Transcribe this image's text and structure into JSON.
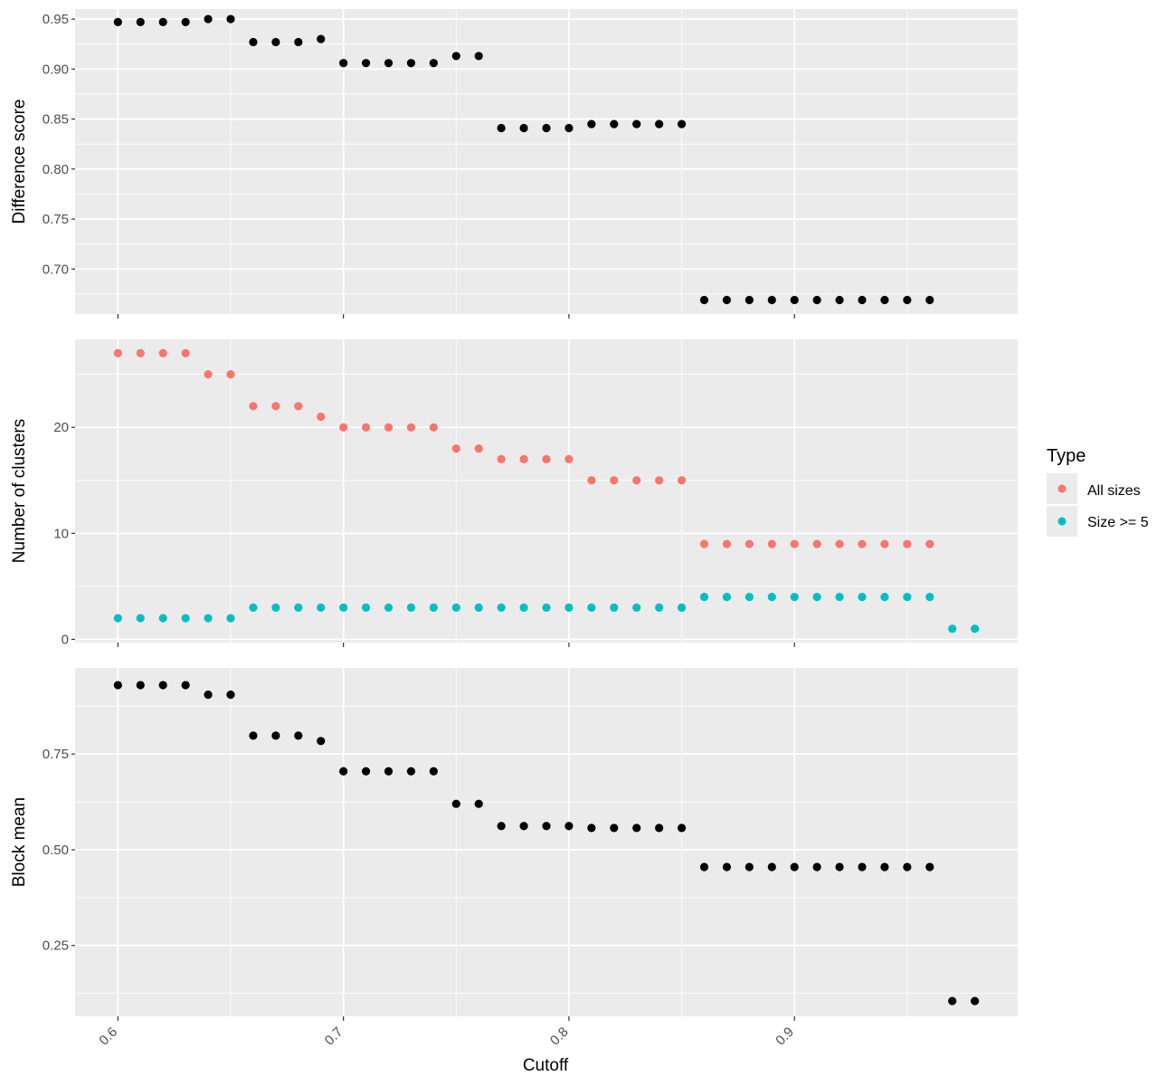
{
  "chart_data": [
    {
      "type": "scatter",
      "panel": "top",
      "xlabel": "",
      "ylabel": "Difference score",
      "xlim": [
        0.581,
        0.999
      ],
      "ylim": [
        0.655,
        0.96
      ],
      "grid": true,
      "y_ticks": [
        "0.70",
        "0.75",
        "0.80",
        "0.85",
        "0.90",
        "0.95"
      ],
      "x_ticks": [],
      "series": [
        {
          "color": "#000000",
          "x": [
            0.6,
            0.61,
            0.62,
            0.63,
            0.64,
            0.65,
            0.66,
            0.67,
            0.68,
            0.69,
            0.7,
            0.71,
            0.72,
            0.73,
            0.74,
            0.75,
            0.76,
            0.77,
            0.78,
            0.79,
            0.8,
            0.81,
            0.82,
            0.83,
            0.84,
            0.85,
            0.86,
            0.87,
            0.88,
            0.89,
            0.9,
            0.91,
            0.92,
            0.93,
            0.94,
            0.95,
            0.96
          ],
          "y": [
            0.947,
            0.947,
            0.947,
            0.947,
            0.95,
            0.95,
            0.927,
            0.927,
            0.927,
            0.93,
            0.906,
            0.906,
            0.906,
            0.906,
            0.906,
            0.913,
            0.913,
            0.841,
            0.841,
            0.841,
            0.841,
            0.845,
            0.845,
            0.845,
            0.845,
            0.845,
            0.669,
            0.669,
            0.669,
            0.669,
            0.669,
            0.669,
            0.669,
            0.669,
            0.669,
            0.669,
            0.669
          ]
        }
      ]
    },
    {
      "type": "scatter",
      "panel": "middle",
      "xlabel": "",
      "ylabel": "Number of clusters",
      "xlim": [
        0.581,
        0.999
      ],
      "ylim": [
        -0.3,
        28.3
      ],
      "grid": true,
      "y_ticks": [
        "0",
        "10",
        "20"
      ],
      "x_ticks": [],
      "series": [
        {
          "name": "All sizes",
          "color": "#F8766D",
          "x": [
            0.6,
            0.61,
            0.62,
            0.63,
            0.64,
            0.65,
            0.66,
            0.67,
            0.68,
            0.69,
            0.7,
            0.71,
            0.72,
            0.73,
            0.74,
            0.75,
            0.76,
            0.77,
            0.78,
            0.79,
            0.8,
            0.81,
            0.82,
            0.83,
            0.84,
            0.85,
            0.86,
            0.87,
            0.88,
            0.89,
            0.9,
            0.91,
            0.92,
            0.93,
            0.94,
            0.95,
            0.96
          ],
          "y": [
            27,
            27,
            27,
            27,
            25,
            25,
            22,
            22,
            22,
            21,
            20,
            20,
            20,
            20,
            20,
            18,
            18,
            17,
            17,
            17,
            17,
            15,
            15,
            15,
            15,
            15,
            9,
            9,
            9,
            9,
            9,
            9,
            9,
            9,
            9,
            9,
            9
          ]
        },
        {
          "name": "Size >= 5",
          "color": "#00BFC4",
          "x": [
            0.6,
            0.61,
            0.62,
            0.63,
            0.64,
            0.65,
            0.66,
            0.67,
            0.68,
            0.69,
            0.7,
            0.71,
            0.72,
            0.73,
            0.74,
            0.75,
            0.76,
            0.77,
            0.78,
            0.79,
            0.8,
            0.81,
            0.82,
            0.83,
            0.84,
            0.85,
            0.86,
            0.87,
            0.88,
            0.89,
            0.9,
            0.91,
            0.92,
            0.93,
            0.94,
            0.95,
            0.96,
            0.97,
            0.98
          ],
          "y": [
            2,
            2,
            2,
            2,
            2,
            2,
            3,
            3,
            3,
            3,
            3,
            3,
            3,
            3,
            3,
            3,
            3,
            3,
            3,
            3,
            3,
            3,
            3,
            3,
            3,
            3,
            4,
            4,
            4,
            4,
            4,
            4,
            4,
            4,
            4,
            4,
            4,
            1,
            1
          ]
        }
      ]
    },
    {
      "type": "scatter",
      "panel": "bottom",
      "xlabel": "Cutoff",
      "ylabel": "Block mean",
      "xlim": [
        0.581,
        0.999
      ],
      "ylim": [
        0.065,
        0.975
      ],
      "grid": true,
      "y_ticks": [
        "0.25",
        "0.50",
        "0.75"
      ],
      "x_ticks": [
        "0.6",
        "0.7",
        "0.8",
        "0.9"
      ],
      "series": [
        {
          "color": "#000000",
          "x": [
            0.6,
            0.61,
            0.62,
            0.63,
            0.64,
            0.65,
            0.66,
            0.67,
            0.68,
            0.69,
            0.7,
            0.71,
            0.72,
            0.73,
            0.74,
            0.75,
            0.76,
            0.77,
            0.78,
            0.79,
            0.8,
            0.81,
            0.82,
            0.83,
            0.84,
            0.85,
            0.86,
            0.87,
            0.88,
            0.89,
            0.9,
            0.91,
            0.92,
            0.93,
            0.94,
            0.95,
            0.96,
            0.97,
            0.98
          ],
          "y": [
            0.93,
            0.93,
            0.93,
            0.93,
            0.905,
            0.905,
            0.798,
            0.798,
            0.798,
            0.784,
            0.705,
            0.705,
            0.705,
            0.705,
            0.705,
            0.62,
            0.62,
            0.562,
            0.562,
            0.562,
            0.562,
            0.557,
            0.557,
            0.557,
            0.557,
            0.557,
            0.455,
            0.455,
            0.455,
            0.455,
            0.455,
            0.455,
            0.455,
            0.455,
            0.455,
            0.455,
            0.455,
            0.105,
            0.105
          ]
        }
      ]
    }
  ],
  "legend": {
    "title": "Type",
    "items": [
      {
        "label": "All sizes",
        "color": "#F8766D"
      },
      {
        "label": "Size >= 5",
        "color": "#00BFC4"
      }
    ]
  }
}
